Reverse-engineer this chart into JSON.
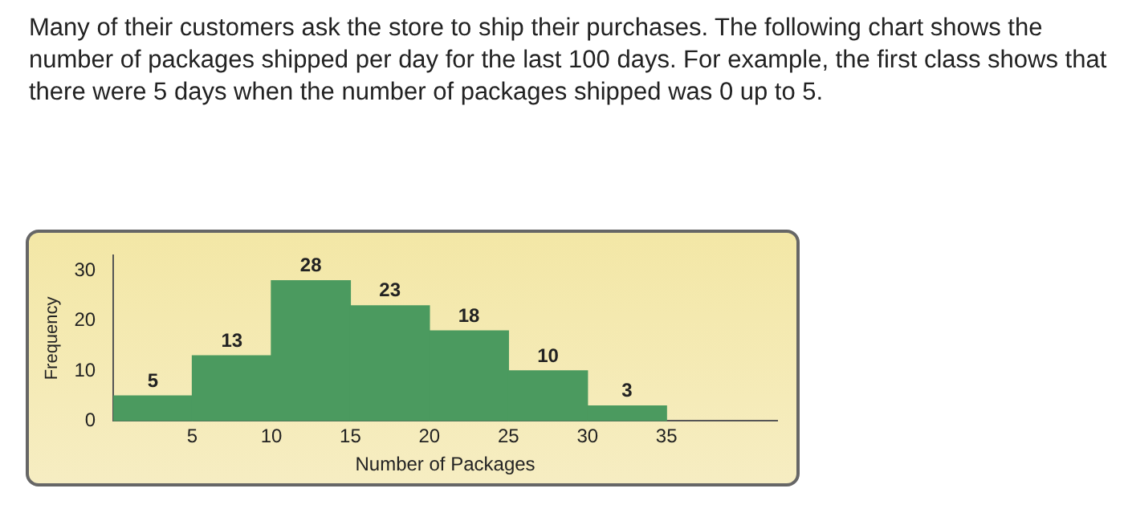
{
  "chart_data": {
    "type": "histogram",
    "annotations": [
      "Many of their customers ask the store to ship their purchases. The following chart shows the number of packages shipped per day for the last 100 days. For example, the first class shows that there were 5 days when the number of packages shipped was 0 up to 5."
    ],
    "xlabel": "Number of Packages",
    "ylabel": "Frequency",
    "bins": [
      0,
      5,
      10,
      15,
      20,
      25,
      30,
      35
    ],
    "values": [
      5,
      13,
      28,
      23,
      18,
      10,
      3
    ],
    "color": "#4b9a5f",
    "xlim": [
      0,
      42
    ],
    "xticks": [
      5,
      10,
      15,
      20,
      25,
      30,
      35
    ],
    "ylim": [
      0,
      33
    ],
    "yticks": [
      0,
      10,
      20,
      30
    ],
    "data_labels": true,
    "grid": false,
    "legend": false
  }
}
